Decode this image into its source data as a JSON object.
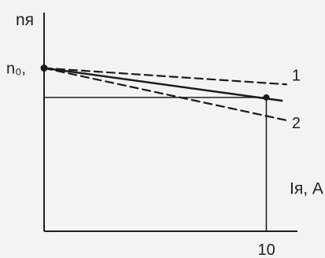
{
  "chart_data": {
    "type": "line",
    "xlabel": "Iя, A",
    "ylabel": "nя",
    "start_label": "n₀,",
    "x_ticks": [
      "10"
    ],
    "xlim": [
      0,
      11.4
    ],
    "ylim": [
      0,
      1.34
    ],
    "grid": false,
    "series": [
      {
        "name": "1",
        "style": "dashed",
        "x": [
          0,
          10.9
        ],
        "y": [
          1.0,
          0.9
        ]
      },
      {
        "name": "2",
        "style": "dashed",
        "x": [
          0,
          10.9
        ],
        "y": [
          1.0,
          0.68
        ]
      },
      {
        "name": "",
        "style": "solid",
        "x": [
          0,
          10.7
        ],
        "y": [
          1.0,
          0.8
        ]
      }
    ],
    "points": [
      {
        "x": 0,
        "y": 1.0
      },
      {
        "x": 10,
        "y": 0.82
      }
    ],
    "guide_lines": {
      "horizontal": {
        "x": [
          0,
          10
        ],
        "y": 0.82
      },
      "vertical": {
        "x": 10,
        "y": [
          0,
          0.82
        ]
      }
    },
    "colors": {
      "line": "#1b1b1b",
      "axis": "#202020",
      "background": "#f3f3f3"
    }
  }
}
